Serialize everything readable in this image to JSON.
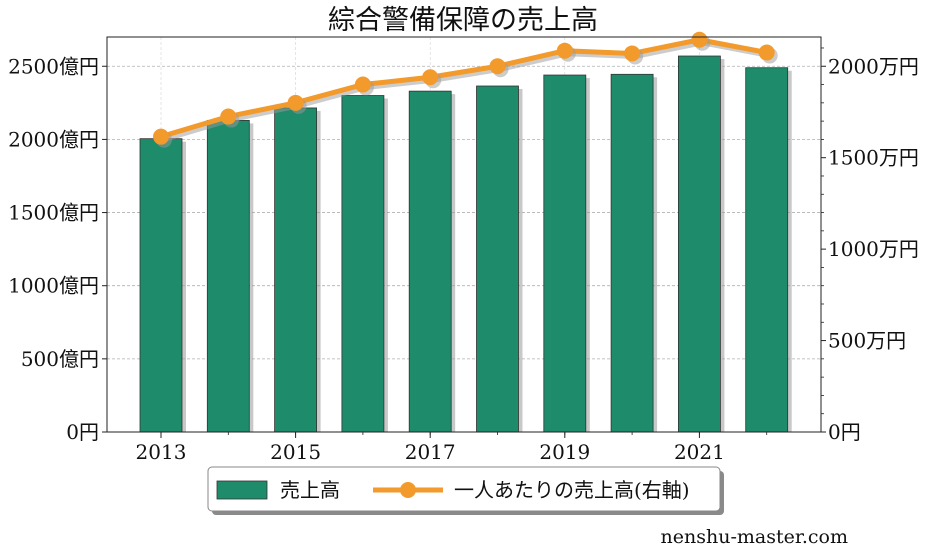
{
  "chart_data": {
    "type": "bar",
    "title": "綜合警備保障の売上高",
    "categories": [
      "2013",
      "2014",
      "2015",
      "2016",
      "2017",
      "2018",
      "2019",
      "2020",
      "2021",
      "2022"
    ],
    "x_tick_labels": [
      "2013",
      "2015",
      "2017",
      "2019",
      "2021"
    ],
    "series": [
      {
        "name": "売上高",
        "type": "bar",
        "axis": "left",
        "values": [
          2005,
          2130,
          2215,
          2300,
          2330,
          2365,
          2440,
          2445,
          2570,
          2490
        ],
        "color": "#1e8b6b"
      },
      {
        "name": "一人あたりの売上高(右軸)",
        "type": "line",
        "axis": "right",
        "values": [
          1615,
          1725,
          1800,
          1900,
          1940,
          2000,
          2085,
          2070,
          2145,
          2075
        ],
        "color": "#f39a2c"
      }
    ],
    "y_left": {
      "ylim": [
        0,
        2700
      ],
      "ticks": [
        0,
        500,
        1000,
        1500,
        2000,
        2500
      ],
      "tick_labels": [
        "0円",
        "500億円",
        "1000億円",
        "1500億円",
        "2000億円",
        "2500億円"
      ]
    },
    "y_right": {
      "ylim": [
        0,
        2160
      ],
      "ticks": [
        0,
        500,
        1000,
        1500,
        2000
      ],
      "tick_labels": [
        "0円",
        "500万円",
        "1000万円",
        "1500万円",
        "2000万円"
      ]
    },
    "grid": true,
    "legend_position": "bottom-center"
  },
  "watermark": "nenshu-master.com"
}
